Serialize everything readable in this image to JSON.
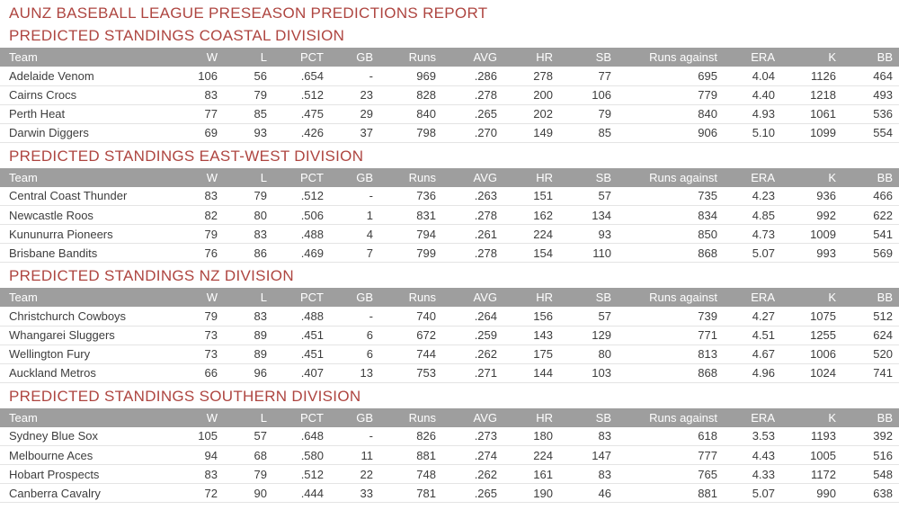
{
  "report": {
    "title": "AUNZ BASEBALL LEAGUE PRESEASON PREDICTIONS REPORT",
    "columns": [
      "Team",
      "W",
      "L",
      "PCT",
      "GB",
      "Runs",
      "AVG",
      "HR",
      "SB",
      "Runs against",
      "ERA",
      "K",
      "BB"
    ],
    "colors": {
      "heading_red": "#ae4540",
      "team_link_blue": "#2a8bd2",
      "header_bg": "#9e9e9e",
      "header_text": "#ffffff",
      "cell_text": "#3d3d3d"
    },
    "sections": [
      {
        "heading": "PREDICTED STANDINGS COASTAL DIVISION",
        "rows": [
          {
            "team": "Adelaide Venom",
            "values": [
              "106",
              "56",
              ".654",
              "-",
              "969",
              ".286",
              "278",
              "77",
              "695",
              "4.04",
              "1126",
              "464"
            ]
          },
          {
            "team": "Cairns Crocs",
            "values": [
              "83",
              "79",
              ".512",
              "23",
              "828",
              ".278",
              "200",
              "106",
              "779",
              "4.40",
              "1218",
              "493"
            ]
          },
          {
            "team": "Perth Heat",
            "values": [
              "77",
              "85",
              ".475",
              "29",
              "840",
              ".265",
              "202",
              "79",
              "840",
              "4.93",
              "1061",
              "536"
            ]
          },
          {
            "team": "Darwin Diggers",
            "values": [
              "69",
              "93",
              ".426",
              "37",
              "798",
              ".270",
              "149",
              "85",
              "906",
              "5.10",
              "1099",
              "554"
            ]
          }
        ]
      },
      {
        "heading": "PREDICTED STANDINGS EAST-WEST DIVISION",
        "rows": [
          {
            "team": "Central Coast Thunder",
            "values": [
              "83",
              "79",
              ".512",
              "-",
              "736",
              ".263",
              "151",
              "57",
              "735",
              "4.23",
              "936",
              "466"
            ]
          },
          {
            "team": "Newcastle Roos",
            "values": [
              "82",
              "80",
              ".506",
              "1",
              "831",
              ".278",
              "162",
              "134",
              "834",
              "4.85",
              "992",
              "622"
            ]
          },
          {
            "team": "Kununurra Pioneers",
            "values": [
              "79",
              "83",
              ".488",
              "4",
              "794",
              ".261",
              "224",
              "93",
              "850",
              "4.73",
              "1009",
              "541"
            ]
          },
          {
            "team": "Brisbane Bandits",
            "values": [
              "76",
              "86",
              ".469",
              "7",
              "799",
              ".278",
              "154",
              "110",
              "868",
              "5.07",
              "993",
              "569"
            ]
          }
        ]
      },
      {
        "heading": "PREDICTED STANDINGS NZ DIVISION",
        "rows": [
          {
            "team": "Christchurch Cowboys",
            "values": [
              "79",
              "83",
              ".488",
              "-",
              "740",
              ".264",
              "156",
              "57",
              "739",
              "4.27",
              "1075",
              "512"
            ]
          },
          {
            "team": "Whangarei Sluggers",
            "values": [
              "73",
              "89",
              ".451",
              "6",
              "672",
              ".259",
              "143",
              "129",
              "771",
              "4.51",
              "1255",
              "624"
            ]
          },
          {
            "team": "Wellington Fury",
            "values": [
              "73",
              "89",
              ".451",
              "6",
              "744",
              ".262",
              "175",
              "80",
              "813",
              "4.67",
              "1006",
              "520"
            ]
          },
          {
            "team": "Auckland Metros",
            "values": [
              "66",
              "96",
              ".407",
              "13",
              "753",
              ".271",
              "144",
              "103",
              "868",
              "4.96",
              "1024",
              "741"
            ]
          }
        ]
      },
      {
        "heading": "PREDICTED STANDINGS SOUTHERN DIVISION",
        "rows": [
          {
            "team": "Sydney Blue Sox",
            "values": [
              "105",
              "57",
              ".648",
              "-",
              "826",
              ".273",
              "180",
              "83",
              "618",
              "3.53",
              "1193",
              "392"
            ]
          },
          {
            "team": "Melbourne Aces",
            "values": [
              "94",
              "68",
              ".580",
              "11",
              "881",
              ".274",
              "224",
              "147",
              "777",
              "4.43",
              "1005",
              "516"
            ]
          },
          {
            "team": "Hobart Prospects",
            "values": [
              "83",
              "79",
              ".512",
              "22",
              "748",
              ".262",
              "161",
              "83",
              "765",
              "4.33",
              "1172",
              "548"
            ]
          },
          {
            "team": "Canberra Cavalry",
            "values": [
              "72",
              "90",
              ".444",
              "33",
              "781",
              ".265",
              "190",
              "46",
              "881",
              "5.07",
              "990",
              "638"
            ]
          }
        ]
      }
    ]
  }
}
